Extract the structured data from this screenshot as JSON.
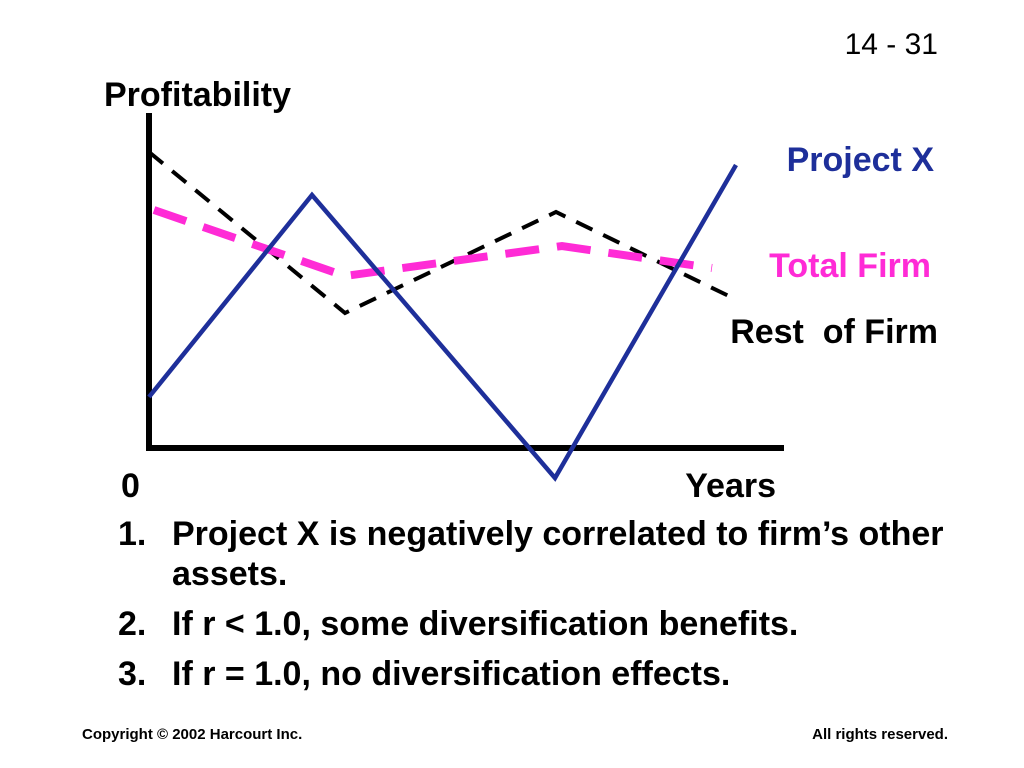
{
  "slide_number": "14 - 31",
  "diagram": {
    "y_axis_label": "Profitability",
    "x_axis_label": "Years",
    "origin_label": "0",
    "series": [
      {
        "name": "Project X",
        "color": "#1e2f9a",
        "style": "solid"
      },
      {
        "name": "Total Firm",
        "color": "#ff2bd6",
        "style": "dashed"
      },
      {
        "name": "Rest  of Firm",
        "color": "#000000",
        "style": "dashed"
      }
    ]
  },
  "points": [
    {
      "num": "1.",
      "text": "Project X is negatively correlated to firm’s other assets."
    },
    {
      "num": "2.",
      "text": "If r < 1.0, some diversification benefits."
    },
    {
      "num": "3.",
      "text": "If r = 1.0, no diversification effects."
    }
  ],
  "footer": {
    "copyright": "Copyright © 2002 Harcourt Inc.",
    "rights": "All rights reserved."
  }
}
